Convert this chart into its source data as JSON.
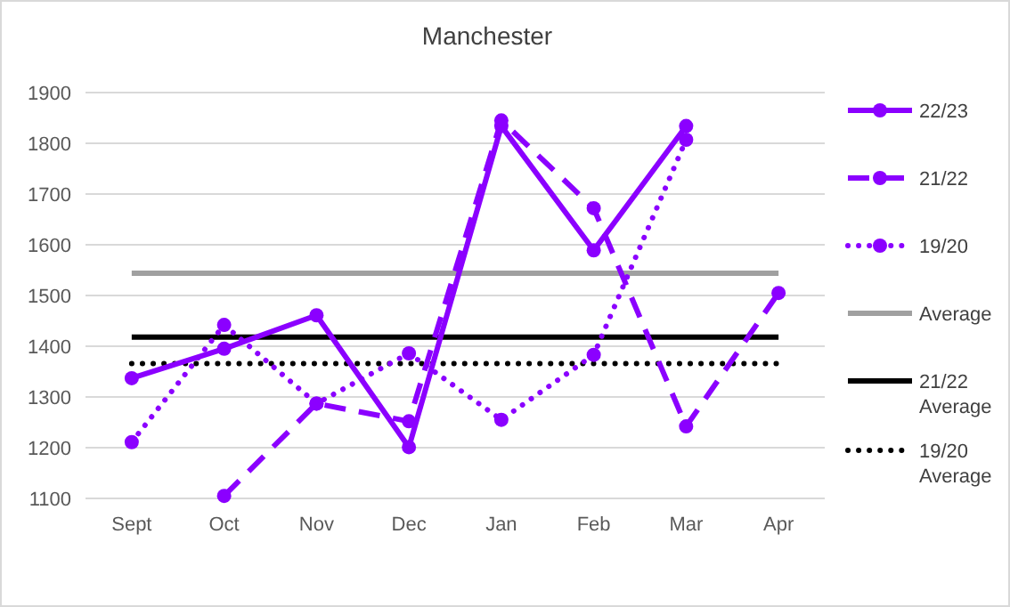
{
  "chart_data": {
    "type": "line",
    "title": "Manchester",
    "categories": [
      "Sept",
      "Oct",
      "Nov",
      "Dec",
      "Jan",
      "Feb",
      "Mar",
      "Apr"
    ],
    "series": [
      {
        "name": "22/23",
        "color": "#8b00ff",
        "line_style": "solid",
        "marker": "circle",
        "values": [
          1337,
          1395,
          1461,
          1201,
          1834,
          1589,
          1834,
          null
        ]
      },
      {
        "name": "21/22",
        "color": "#8b00ff",
        "line_style": "dashed",
        "marker": "circle",
        "values": [
          null,
          1105,
          1287,
          1252,
          1845,
          1672,
          1242,
          1505
        ]
      },
      {
        "name": "19/20",
        "color": "#8b00ff",
        "line_style": "dotted",
        "marker": "circle",
        "values": [
          1211,
          1442,
          1287,
          1386,
          1255,
          1383,
          1807,
          null
        ]
      },
      {
        "name": "Average",
        "color": "#a0a0a0",
        "line_style": "solid",
        "marker": "none",
        "values": [
          1544,
          1544,
          1544,
          1544,
          1544,
          1544,
          1544,
          1544
        ]
      },
      {
        "name": "21/22 Average",
        "color": "#000000",
        "line_style": "solid",
        "marker": "none",
        "values": [
          1418,
          1418,
          1418,
          1418,
          1418,
          1418,
          1418,
          1418
        ]
      },
      {
        "name": "19/20 Average",
        "color": "#000000",
        "line_style": "dotted",
        "marker": "none",
        "values": [
          1366,
          1366,
          1366,
          1366,
          1366,
          1366,
          1366,
          1366
        ]
      }
    ],
    "ylim": [
      1100,
      1900
    ],
    "yticks": [
      1100,
      1200,
      1300,
      1400,
      1500,
      1600,
      1700,
      1800,
      1900
    ],
    "grid": "y",
    "legend": "right"
  }
}
